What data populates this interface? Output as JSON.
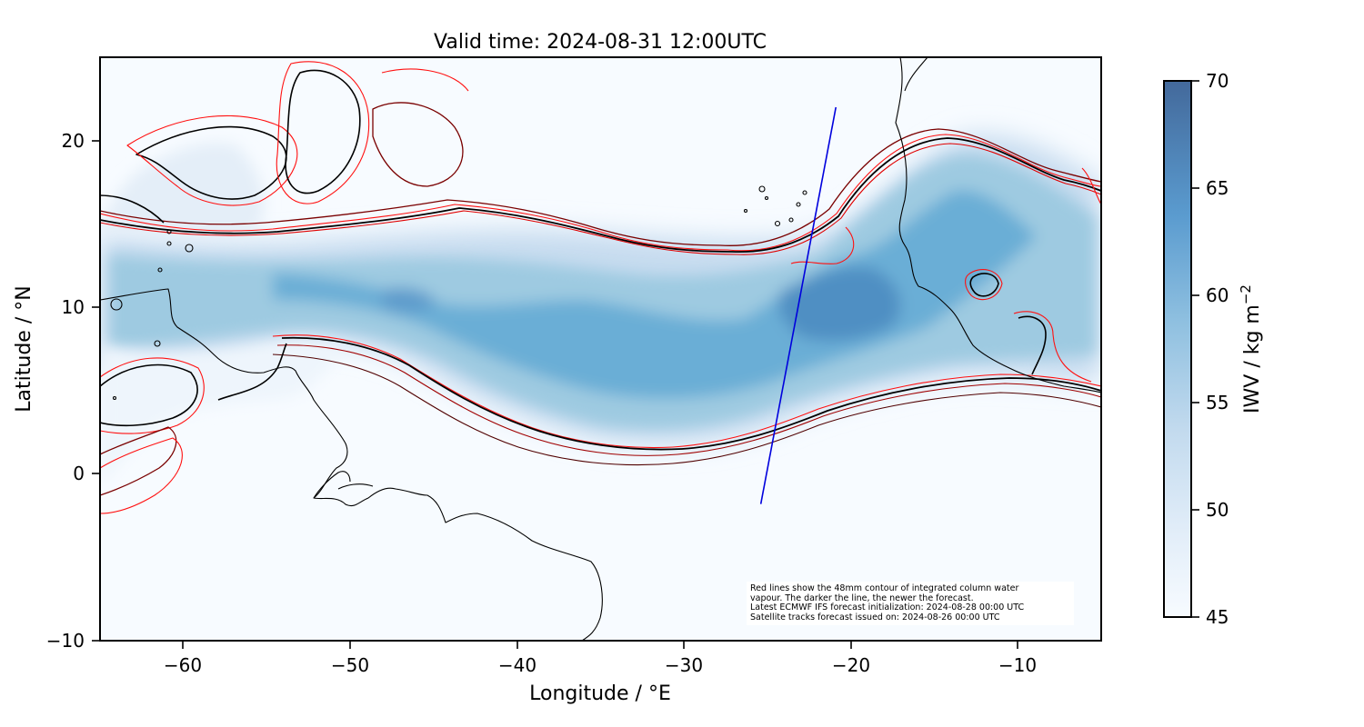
{
  "title": "Valid time: 2024-08-31 12:00UTC",
  "x_axis": {
    "label": "Longitude / °E",
    "ticks": [
      "−60",
      "−50",
      "−40",
      "−30",
      "−20",
      "−10"
    ]
  },
  "y_axis": {
    "label": "Latitude / °N",
    "ticks": [
      "20",
      "10",
      "0",
      "−10"
    ]
  },
  "colorbar": {
    "label": "IWV / kg m",
    "label_superscript": "−2",
    "ticks": [
      "70",
      "65",
      "60",
      "55",
      "50",
      "45"
    ],
    "min": 45,
    "max": 70,
    "colormap": "Blues"
  },
  "annotation": {
    "lines": [
      "Red lines show the 48mm contour of integrated column water",
      "vapour. The darker the line, the newer the forecast.",
      "Latest ECMWF IFS forecast initialization: 2024-08-28 00:00 UTC",
      "Satellite tracks forecast issued on: 2024-08-26 00:00 UTC"
    ]
  },
  "map_extent": {
    "lon": [
      -65,
      -5
    ],
    "lat": [
      -10,
      25
    ]
  },
  "satellite_track": {
    "start": {
      "lon": -25.4,
      "lat": -1.8
    },
    "end": {
      "lon": -20.9,
      "lat": 22.0
    },
    "color": "#0000dd"
  },
  "colors": {
    "forecast_contours": [
      "#ff0000",
      "#b00000",
      "#600000",
      "#000000"
    ],
    "coastline": "#000000"
  }
}
